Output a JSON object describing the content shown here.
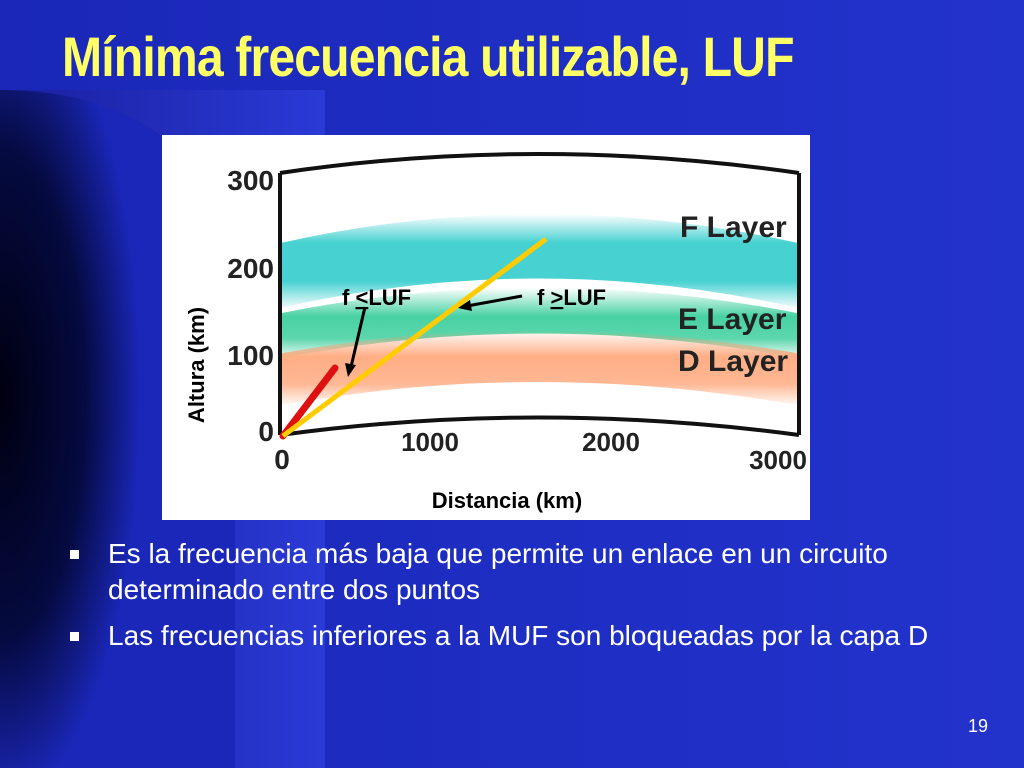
{
  "slide": {
    "title": "Mínima frecuencia utilizable, LUF",
    "page_number": "19",
    "colors": {
      "background": "#1f2ec4",
      "title": "#ffff66",
      "text": "#ffffff"
    }
  },
  "figure": {
    "y_axis": {
      "label": "Altura (km)",
      "ticks": [
        "300",
        "200",
        "100",
        "0"
      ]
    },
    "x_axis": {
      "label": "Distancia (km)",
      "ticks": [
        "0",
        "1000",
        "2000",
        "3000"
      ]
    },
    "layers": [
      {
        "name": "F Layer",
        "color": "#33cccc"
      },
      {
        "name": "E Layer",
        "color": "#33cc99"
      },
      {
        "name": "D Layer",
        "color": "#ff9966"
      }
    ],
    "labels": {
      "below_luf_prefix": "f ",
      "below_luf_symbol": "<",
      "below_luf_suffix": "LUF",
      "above_luf_prefix": "f ",
      "above_luf_symbol": ">",
      "above_luf_suffix": "LUF"
    },
    "rays": [
      {
        "name": "f <LUF",
        "color": "#dd1111"
      },
      {
        "name": "f >LUF",
        "color": "#ffcc00"
      }
    ]
  },
  "bullets": [
    "Es la frecuencia más baja que permite un enlace en un circuito determinado entre dos puntos",
    "Las frecuencias inferiores a la MUF son bloqueadas por la capa D"
  ]
}
